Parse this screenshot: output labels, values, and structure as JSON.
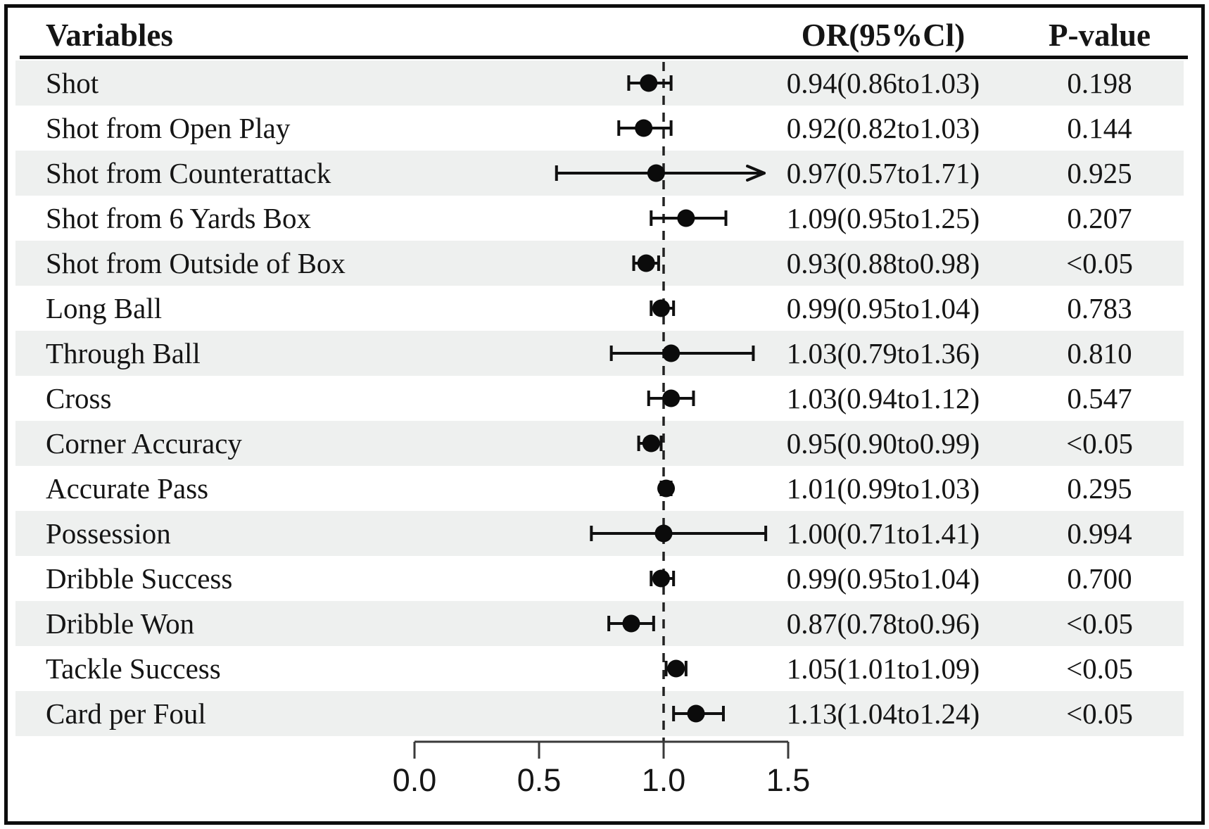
{
  "header": {
    "variables": "Variables",
    "or_ci": "OR(95%Cl)",
    "p_value": "P-value"
  },
  "colors": {
    "band": "#eef0ef",
    "text": "#151515",
    "marker": "#0b0b0b",
    "error_bar": "#101010",
    "ref_line": "#222222",
    "axis": "#3a3a3a",
    "border": "#0d0d0d"
  },
  "chart_data": {
    "type": "scatter",
    "subtype": "forest-plot",
    "xlabel": "",
    "ylabel": "",
    "xlim": [
      0.0,
      1.5
    ],
    "x_tick_values": [
      0.0,
      0.5,
      1.0,
      1.5
    ],
    "x_tick_labels": [
      "0.0",
      "0.5",
      "1.0",
      "1.5"
    ],
    "reference_line_x": 1.0,
    "reference_line_style": "dashed",
    "grid": false,
    "legend_position": "none",
    "rows": [
      {
        "label": "Shot",
        "or": 0.94,
        "ci_low": 0.86,
        "ci_high": 1.03,
        "clipped_high": false,
        "or_ci_text": "0.94(0.86to1.03)",
        "p_text": "0.198"
      },
      {
        "label": "Shot from Open Play",
        "or": 0.92,
        "ci_low": 0.82,
        "ci_high": 1.03,
        "clipped_high": false,
        "or_ci_text": "0.92(0.82to1.03)",
        "p_text": "0.144"
      },
      {
        "label": "Shot from Counterattack",
        "or": 0.97,
        "ci_low": 0.57,
        "ci_high": 1.71,
        "clipped_high": true,
        "or_ci_text": "0.97(0.57to1.71)",
        "p_text": "0.925"
      },
      {
        "label": "Shot from 6 Yards Box",
        "or": 1.09,
        "ci_low": 0.95,
        "ci_high": 1.25,
        "clipped_high": false,
        "or_ci_text": "1.09(0.95to1.25)",
        "p_text": "0.207"
      },
      {
        "label": "Shot from Outside of Box",
        "or": 0.93,
        "ci_low": 0.88,
        "ci_high": 0.98,
        "clipped_high": false,
        "or_ci_text": "0.93(0.88to0.98)",
        "p_text": "<0.05"
      },
      {
        "label": "Long Ball",
        "or": 0.99,
        "ci_low": 0.95,
        "ci_high": 1.04,
        "clipped_high": false,
        "or_ci_text": "0.99(0.95to1.04)",
        "p_text": "0.783"
      },
      {
        "label": "Through Ball",
        "or": 1.03,
        "ci_low": 0.79,
        "ci_high": 1.36,
        "clipped_high": false,
        "or_ci_text": "1.03(0.79to1.36)",
        "p_text": "0.810"
      },
      {
        "label": "Cross",
        "or": 1.03,
        "ci_low": 0.94,
        "ci_high": 1.12,
        "clipped_high": false,
        "or_ci_text": "1.03(0.94to1.12)",
        "p_text": "0.547"
      },
      {
        "label": "Corner Accuracy",
        "or": 0.95,
        "ci_low": 0.9,
        "ci_high": 0.99,
        "clipped_high": false,
        "or_ci_text": "0.95(0.90to0.99)",
        "p_text": "<0.05"
      },
      {
        "label": "Accurate Pass",
        "or": 1.01,
        "ci_low": 0.99,
        "ci_high": 1.03,
        "clipped_high": false,
        "or_ci_text": "1.01(0.99to1.03)",
        "p_text": "0.295"
      },
      {
        "label": "Possession",
        "or": 1.0,
        "ci_low": 0.71,
        "ci_high": 1.41,
        "clipped_high": false,
        "or_ci_text": "1.00(0.71to1.41)",
        "p_text": "0.994"
      },
      {
        "label": "Dribble Success",
        "or": 0.99,
        "ci_low": 0.95,
        "ci_high": 1.04,
        "clipped_high": false,
        "or_ci_text": "0.99(0.95to1.04)",
        "p_text": "0.700"
      },
      {
        "label": "Dribble Won",
        "or": 0.87,
        "ci_low": 0.78,
        "ci_high": 0.96,
        "clipped_high": false,
        "or_ci_text": "0.87(0.78to0.96)",
        "p_text": "<0.05"
      },
      {
        "label": "Tackle Success",
        "or": 1.05,
        "ci_low": 1.01,
        "ci_high": 1.09,
        "clipped_high": false,
        "or_ci_text": "1.05(1.01to1.09)",
        "p_text": "<0.05"
      },
      {
        "label": "Card per Foul",
        "or": 1.13,
        "ci_low": 1.04,
        "ci_high": 1.24,
        "clipped_high": false,
        "or_ci_text": "1.13(1.04to1.24)",
        "p_text": "<0.05"
      }
    ]
  }
}
